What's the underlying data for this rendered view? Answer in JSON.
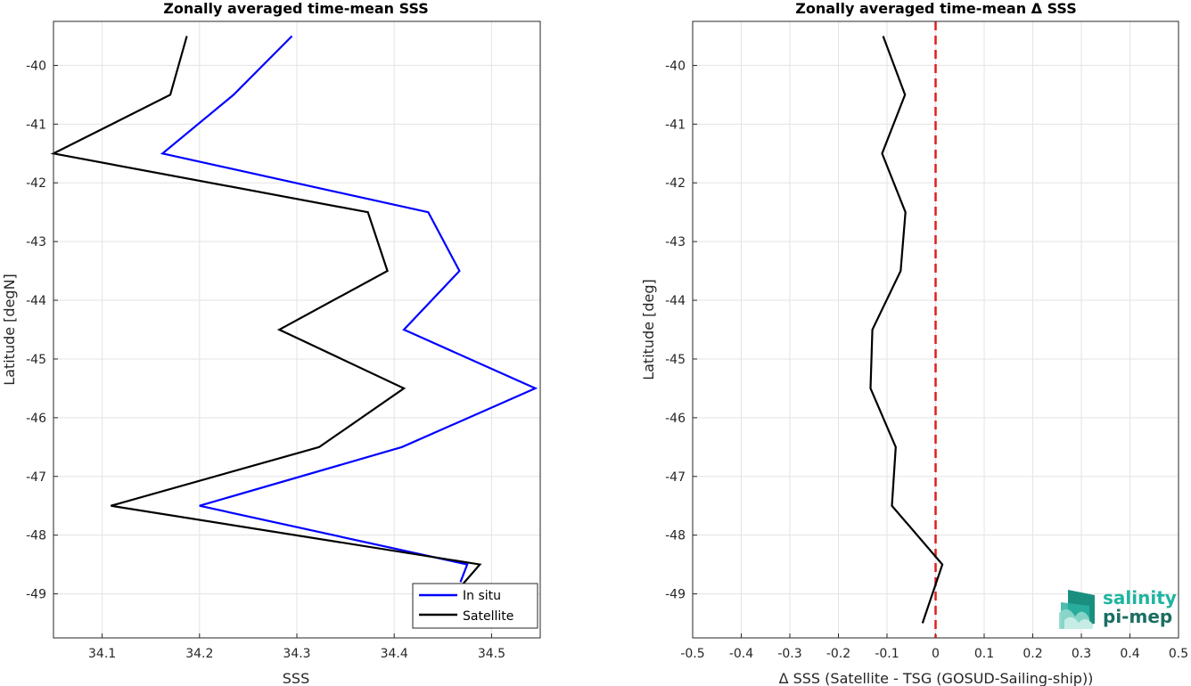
{
  "chart_data": [
    {
      "type": "line",
      "title": "Zonally averaged time-mean SSS",
      "xlabel": "SSS",
      "ylabel": "Latitude [degN]",
      "xlim": [
        34.05,
        34.55
      ],
      "ylim": [
        -49.75,
        -39.25
      ],
      "xticks": [
        "34.1",
        "34.2",
        "34.3",
        "34.4",
        "34.5"
      ],
      "yticks": [
        "-40",
        "-41",
        "-42",
        "-43",
        "-44",
        "-45",
        "-46",
        "-47",
        "-48",
        "-49"
      ],
      "grid": true,
      "legend_position": "bottom-right",
      "series": [
        {
          "name": "In situ",
          "color": "#0000ff",
          "x": [
            34.295,
            34.235,
            34.162,
            34.435,
            34.467,
            34.41,
            34.545,
            34.408,
            34.2,
            34.475,
            34.468
          ],
          "y": [
            -39.5,
            -40.5,
            -41.5,
            -42.5,
            -43.5,
            -44.5,
            -45.5,
            -46.5,
            -47.5,
            -48.5,
            -48.8
          ]
        },
        {
          "name": "Satellite",
          "color": "#000000",
          "x": [
            34.187,
            34.17,
            34.05,
            34.373,
            34.393,
            34.282,
            34.41,
            34.323,
            34.109,
            34.488,
            34.467
          ],
          "y": [
            -39.5,
            -40.5,
            -41.5,
            -42.5,
            -43.5,
            -44.5,
            -45.5,
            -46.5,
            -47.5,
            -48.5,
            -48.9
          ]
        }
      ]
    },
    {
      "type": "line",
      "title": "Zonally averaged time-mean Δ SSS",
      "xlabel": "Δ SSS (Satellite - TSG (GOSUD-Sailing-ship))",
      "ylabel": "Latitude [deg]",
      "xlim": [
        -0.5,
        0.5
      ],
      "ylim": [
        -49.75,
        -39.25
      ],
      "xticks": [
        "-0.5",
        "-0.4",
        "-0.3",
        "-0.2",
        "-0.1",
        "0",
        "0.1",
        "0.2",
        "0.3",
        "0.4",
        "0.5"
      ],
      "yticks": [
        "-40",
        "-41",
        "-42",
        "-43",
        "-44",
        "-45",
        "-46",
        "-47",
        "-48",
        "-49"
      ],
      "grid": true,
      "reference_line": {
        "x": 0,
        "color": "#e01f1f",
        "style": "dashed"
      },
      "series": [
        {
          "color": "#000000",
          "x": [
            -0.108,
            -0.063,
            -0.11,
            -0.062,
            -0.072,
            -0.13,
            -0.134,
            -0.082,
            -0.09,
            0.014,
            -0.027
          ],
          "y": [
            -39.5,
            -40.5,
            -41.5,
            -42.5,
            -43.5,
            -44.5,
            -45.5,
            -46.5,
            -47.5,
            -48.5,
            -49.5
          ]
        }
      ]
    }
  ],
  "logo": {
    "line1": "salinity",
    "line2": "pi-mep"
  }
}
